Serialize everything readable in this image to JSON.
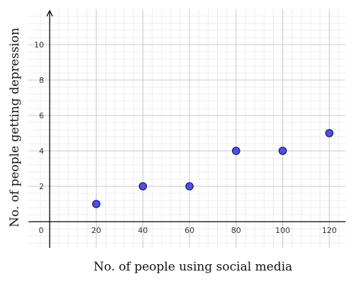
{
  "chart_data": {
    "type": "scatter",
    "xlabel": "No. of people using social media",
    "ylabel": "No. of people getting depression",
    "x_ticks": [
      "0",
      "20",
      "40",
      "60",
      "80",
      "100",
      "120"
    ],
    "y_ticks": [
      "2",
      "4",
      "6",
      "8",
      "10"
    ],
    "xlim": [
      -4,
      127
    ],
    "ylim": [
      -1.3,
      12
    ],
    "grid": true,
    "points": [
      {
        "x": 20,
        "y": 1
      },
      {
        "x": 40,
        "y": 2
      },
      {
        "x": 60,
        "y": 2
      },
      {
        "x": 80,
        "y": 4
      },
      {
        "x": 100,
        "y": 4
      },
      {
        "x": 120,
        "y": 5
      }
    ],
    "colors": {
      "point_fill": "#4f4fe8",
      "point_stroke": "#1a1a55",
      "major_grid": "#c8c8c8",
      "minor_grid": "#ececec",
      "axis": "#000000"
    }
  }
}
